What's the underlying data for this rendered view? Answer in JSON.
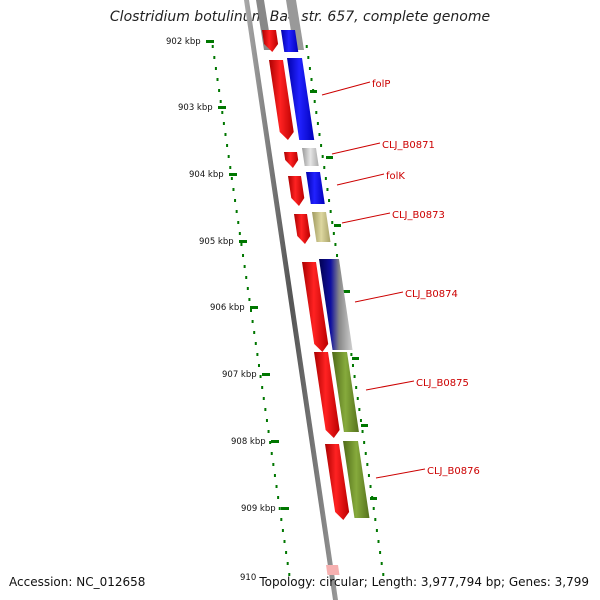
{
  "title": "Clostridium botulinum Ba4 str. 657, complete genome",
  "accession": "Accession: NC_012658",
  "topology": "Topology: circular; Length: 3,977,794 bp; Genes: 3,799",
  "colors": {
    "forward_cds": "#ee0000",
    "reverse_cds": "#0000ee",
    "gray": "#c8c8c8",
    "khaki": "#c8c080",
    "navy": "#000080",
    "olive": "#6b8e23",
    "tick": "#007700",
    "label_line": "#cc0000"
  },
  "ticks": [
    {
      "label": "902 kbp"
    },
    {
      "label": "903 kbp"
    },
    {
      "label": "904 kbp"
    },
    {
      "label": "905 kbp"
    },
    {
      "label": "906 kbp"
    },
    {
      "label": "907 kbp"
    },
    {
      "label": "908 kbp"
    },
    {
      "label": "909 kbp"
    },
    {
      "label": "910"
    }
  ],
  "genes": [
    {
      "label": "folP"
    },
    {
      "label": "CLJ_B0871"
    },
    {
      "label": "folK"
    },
    {
      "label": "CLJ_B0873"
    },
    {
      "label": "CLJ_B0874"
    },
    {
      "label": "CLJ_B0875"
    },
    {
      "label": "CLJ_B0876"
    }
  ]
}
